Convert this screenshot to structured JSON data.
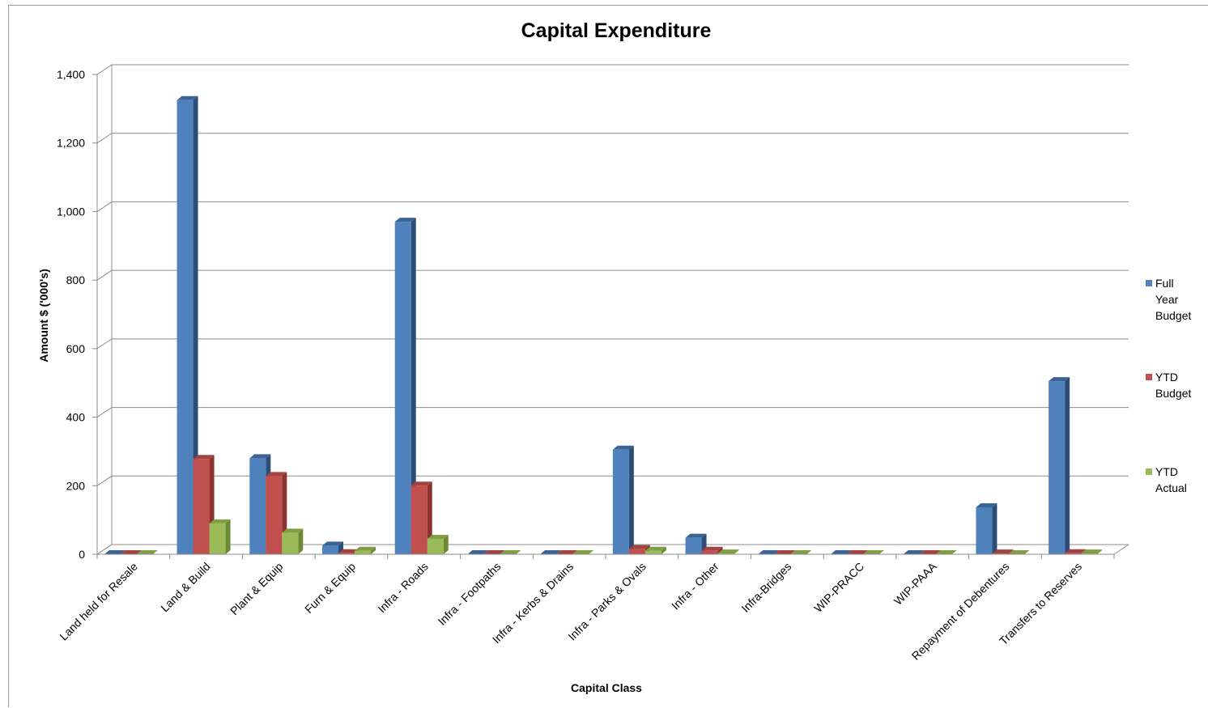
{
  "chart_data": {
    "type": "bar",
    "title": "Capital Expenditure",
    "xlabel": "Capital Class",
    "ylabel": "Amount $ ('000's)",
    "ylim": [
      0,
      1400
    ],
    "yticks": [
      0,
      200,
      400,
      600,
      800,
      1000,
      1200,
      1400
    ],
    "ytick_labels": [
      "0",
      "200",
      "400",
      "600",
      "800",
      "1,000",
      "1,200",
      "1,400"
    ],
    "grid": true,
    "legend_position": "right",
    "categories": [
      "Land held for Resale",
      "Land & Build",
      "Plant & Equip",
      "Furn & Equip",
      "Infra - Roads",
      "Infra - Footpaths",
      "Infra - Kerbs & Drains",
      "Infra - Parks & Ovals",
      "Infra - Other",
      "Infra-Bridges",
      "WIP-PRACC",
      "WIP-PAAA",
      "Repayment of Debentures",
      "Transfers to Reserves"
    ],
    "series": [
      {
        "name": "Full Year Budget",
        "name_lines": [
          "Full",
          "Year",
          "Budget"
        ],
        "color": "#4F81BD",
        "side": "#2C4D75",
        "top": "#3A6396",
        "values": [
          0,
          1325,
          280,
          25,
          970,
          0,
          0,
          305,
          48,
          0,
          0,
          0,
          137,
          505
        ]
      },
      {
        "name": "YTD Budget",
        "name_lines": [
          "YTD",
          "Budget"
        ],
        "color": "#C0504D",
        "side": "#8C3230",
        "top": "#A34240",
        "values": [
          0,
          278,
          228,
          3,
          200,
          0,
          0,
          15,
          10,
          0,
          0,
          0,
          2,
          3
        ]
      },
      {
        "name": "YTD Actual",
        "name_lines": [
          "YTD",
          "Actual"
        ],
        "color": "#9BBB59",
        "side": "#6C8A33",
        "top": "#809E43",
        "values": [
          0,
          90,
          63,
          10,
          45,
          0,
          0,
          10,
          2,
          0,
          0,
          0,
          0,
          2
        ]
      }
    ]
  }
}
